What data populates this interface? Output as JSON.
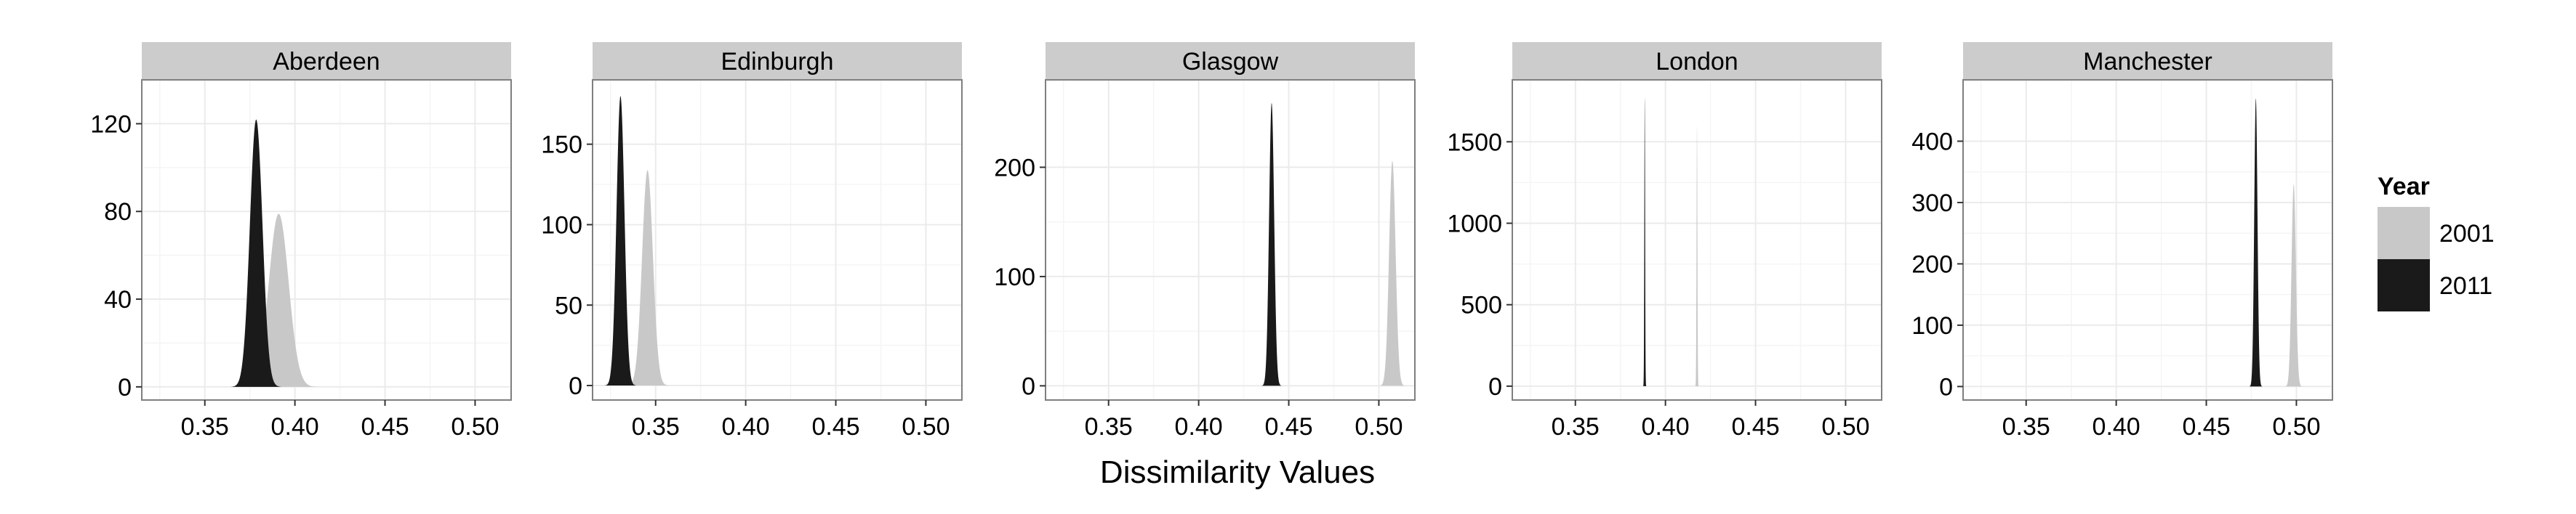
{
  "chart_data": {
    "type": "area",
    "xlabel": "Dissimilarity Values",
    "ylabel": "",
    "xlim": [
      0.315,
      0.52
    ],
    "x_ticks": [
      0.35,
      0.4,
      0.45,
      0.5
    ],
    "x_tick_labels": [
      "0.35",
      "0.40",
      "0.45",
      "0.50"
    ],
    "grid": true,
    "legend": {
      "title": "Year",
      "position": "right",
      "entries": [
        {
          "label": "2001",
          "color": "#c8c8c8"
        },
        {
          "label": "2011",
          "color": "#1a1a1a"
        }
      ]
    },
    "panels": [
      {
        "name": "Aberdeen",
        "ylim": [
          -6,
          140
        ],
        "y_ticks": [
          0,
          40,
          80,
          120
        ],
        "y_tick_labels": [
          "0",
          "40",
          "80",
          "120"
        ],
        "series": [
          {
            "name": "2001",
            "color": "#c8c8c8",
            "center": 0.391,
            "sd": 0.0055,
            "peak": 79
          },
          {
            "name": "2011",
            "color": "#1a1a1a",
            "center": 0.3785,
            "sd": 0.0035,
            "peak": 122
          }
        ]
      },
      {
        "name": "Edinburgh",
        "ylim": [
          -9,
          190
        ],
        "y_ticks": [
          0,
          50,
          100,
          150
        ],
        "y_tick_labels": [
          "0",
          "50",
          "100",
          "150"
        ],
        "series": [
          {
            "name": "2001",
            "color": "#c8c8c8",
            "center": 0.3455,
            "sd": 0.003,
            "peak": 134
          },
          {
            "name": "2011",
            "color": "#1a1a1a",
            "center": 0.3305,
            "sd": 0.0022,
            "peak": 180
          }
        ]
      },
      {
        "name": "Glasgow",
        "ylim": [
          -13,
          280
        ],
        "y_ticks": [
          0,
          100,
          200
        ],
        "y_tick_labels": [
          "0",
          "100",
          "200"
        ],
        "series": [
          {
            "name": "2001",
            "color": "#c8c8c8",
            "center": 0.5075,
            "sd": 0.0018,
            "peak": 206
          },
          {
            "name": "2011",
            "color": "#1a1a1a",
            "center": 0.4405,
            "sd": 0.0014,
            "peak": 259
          }
        ]
      },
      {
        "name": "London",
        "ylim": [
          -85,
          1880
        ],
        "y_ticks": [
          0,
          500,
          1000,
          1500
        ],
        "y_tick_labels": [
          "0",
          "500",
          "1000",
          "1500"
        ],
        "series": [
          {
            "name": "2001",
            "color": "#c8c8c8",
            "center": 0.4175,
            "sd": 0.00024,
            "peak": 1600
          },
          {
            "name": "2011",
            "color": "#1a1a1a",
            "center": 0.3885,
            "sd": 0.00022,
            "peak": 1770
          }
        ]
      },
      {
        "name": "Manchester",
        "ylim": [
          -22,
          500
        ],
        "y_ticks": [
          0,
          100,
          200,
          300,
          400
        ],
        "y_tick_labels": [
          "0",
          "100",
          "200",
          "300",
          "400"
        ],
        "series": [
          {
            "name": "2001",
            "color": "#c8c8c8",
            "center": 0.4985,
            "sd": 0.0012,
            "peak": 330
          },
          {
            "name": "2011",
            "color": "#1a1a1a",
            "center": 0.4775,
            "sd": 0.0009,
            "peak": 470
          }
        ]
      }
    ]
  }
}
